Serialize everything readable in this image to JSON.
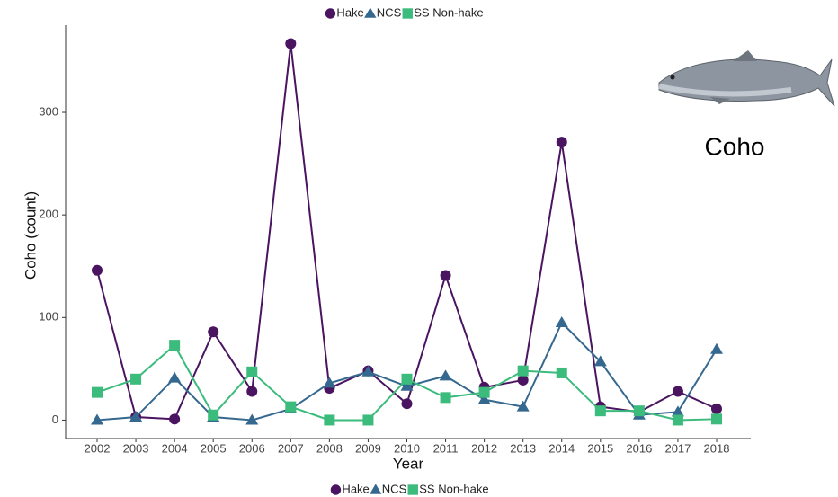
{
  "chart_data": {
    "type": "line",
    "x_label": "Year",
    "y_label": "Coho (count)",
    "annotation": "Coho",
    "categories": [
      "2002",
      "2003",
      "2004",
      "2005",
      "2006",
      "2007",
      "2008",
      "2009",
      "2010",
      "2011",
      "2012",
      "2013",
      "2014",
      "2015",
      "2016",
      "2017",
      "2018"
    ],
    "series": [
      {
        "name": "Hake",
        "color": "#4a1460",
        "marker": "circle",
        "values": [
          146,
          3,
          1,
          86,
          28,
          367,
          31,
          48,
          16,
          141,
          32,
          39,
          271,
          13,
          8,
          28,
          11
        ]
      },
      {
        "name": "NCS",
        "color": "#35688f",
        "marker": "triangle",
        "values": [
          0,
          3,
          41,
          3,
          0,
          11,
          36,
          47,
          33,
          43,
          20,
          13,
          95,
          57,
          5,
          8,
          69
        ]
      },
      {
        "name": "SS Non-hake",
        "color": "#3bbb7c",
        "marker": "square",
        "values": [
          27,
          40,
          73,
          5,
          47,
          13,
          0,
          0,
          40,
          22,
          27,
          48,
          46,
          9,
          9,
          0,
          1
        ]
      }
    ],
    "ylim": [
      -18,
      385
    ],
    "yticks": [
      0,
      100,
      200,
      300
    ],
    "grid": false
  }
}
